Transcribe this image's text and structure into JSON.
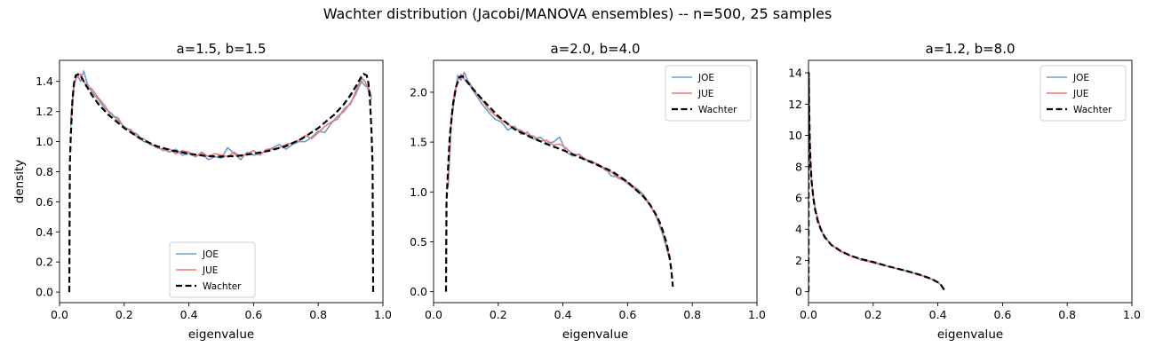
{
  "figure": {
    "suptitle": "Wachter distribution (Jacobi/MANOVA ensembles) -- n=500, 25 samples"
  },
  "colors": {
    "joe": "#6a9fcf",
    "jue": "#e8797a",
    "wachter": "#000000"
  },
  "chart_data": [
    {
      "type": "line",
      "title": "a=1.5, b=1.5",
      "xlabel": "eigenvalue",
      "ylabel": "density",
      "xlim": [
        0.0,
        1.0
      ],
      "ylim": [
        -0.07,
        1.54
      ],
      "xticks": [
        0.0,
        0.2,
        0.4,
        0.6,
        0.8,
        1.0
      ],
      "xtick_labels": [
        "0.0",
        "0.2",
        "0.4",
        "0.6",
        "0.8",
        "1.0"
      ],
      "yticks": [
        0.0,
        0.2,
        0.4,
        0.6,
        0.8,
        1.0,
        1.2,
        1.4
      ],
      "ytick_labels": [
        "0.0",
        "0.2",
        "0.4",
        "0.6",
        "0.8",
        "1.0",
        "1.2",
        "1.4"
      ],
      "legend": {
        "position": "lower-center",
        "entries": [
          "JOE",
          "JUE",
          "Wachter"
        ]
      },
      "series": [
        {
          "name": "JOE",
          "style": "solid",
          "x": [
            0.035,
            0.045,
            0.055,
            0.065,
            0.075,
            0.085,
            0.1,
            0.12,
            0.14,
            0.16,
            0.18,
            0.2,
            0.22,
            0.24,
            0.26,
            0.28,
            0.3,
            0.32,
            0.34,
            0.36,
            0.38,
            0.4,
            0.42,
            0.44,
            0.46,
            0.48,
            0.5,
            0.52,
            0.54,
            0.56,
            0.58,
            0.6,
            0.62,
            0.64,
            0.66,
            0.68,
            0.7,
            0.72,
            0.74,
            0.76,
            0.78,
            0.8,
            0.82,
            0.84,
            0.86,
            0.88,
            0.9,
            0.915,
            0.925,
            0.935,
            0.945,
            0.955,
            0.965
          ],
          "y": [
            1.1,
            1.38,
            1.44,
            1.4,
            1.47,
            1.39,
            1.33,
            1.28,
            1.22,
            1.19,
            1.14,
            1.1,
            1.07,
            1.05,
            1.0,
            0.99,
            0.96,
            0.95,
            0.93,
            0.95,
            0.91,
            0.92,
            0.9,
            0.92,
            0.88,
            0.9,
            0.89,
            0.96,
            0.92,
            0.88,
            0.93,
            0.91,
            0.92,
            0.94,
            0.96,
            0.98,
            0.95,
            0.98,
            1.0,
            1.0,
            1.03,
            1.07,
            1.06,
            1.12,
            1.17,
            1.2,
            1.26,
            1.31,
            1.36,
            1.4,
            1.37,
            1.36,
            1.3
          ]
        },
        {
          "name": "JUE",
          "style": "solid",
          "x": [
            0.035,
            0.045,
            0.055,
            0.065,
            0.075,
            0.085,
            0.1,
            0.12,
            0.14,
            0.16,
            0.18,
            0.2,
            0.22,
            0.24,
            0.26,
            0.28,
            0.3,
            0.32,
            0.34,
            0.36,
            0.38,
            0.4,
            0.42,
            0.44,
            0.46,
            0.48,
            0.5,
            0.52,
            0.54,
            0.56,
            0.58,
            0.6,
            0.62,
            0.64,
            0.66,
            0.68,
            0.7,
            0.72,
            0.74,
            0.76,
            0.78,
            0.8,
            0.82,
            0.84,
            0.86,
            0.88,
            0.9,
            0.915,
            0.925,
            0.935,
            0.945,
            0.955,
            0.965
          ],
          "y": [
            1.15,
            1.4,
            1.43,
            1.45,
            1.4,
            1.37,
            1.35,
            1.29,
            1.24,
            1.17,
            1.16,
            1.09,
            1.08,
            1.03,
            1.02,
            0.98,
            0.97,
            0.94,
            0.95,
            0.92,
            0.94,
            0.93,
            0.9,
            0.93,
            0.9,
            0.92,
            0.91,
            0.9,
            0.93,
            0.9,
            0.92,
            0.94,
            0.91,
            0.95,
            0.95,
            0.96,
            0.98,
            0.99,
            1.01,
            1.04,
            1.02,
            1.06,
            1.1,
            1.13,
            1.15,
            1.22,
            1.25,
            1.33,
            1.38,
            1.42,
            1.4,
            1.34,
            1.28
          ]
        },
        {
          "name": "Wachter",
          "style": "dashed",
          "x": [
            0.0302,
            0.032,
            0.035,
            0.04,
            0.045,
            0.05,
            0.06,
            0.07,
            0.08,
            0.1,
            0.12,
            0.15,
            0.2,
            0.25,
            0.3,
            0.35,
            0.4,
            0.45,
            0.5,
            0.55,
            0.6,
            0.65,
            0.7,
            0.75,
            0.8,
            0.85,
            0.88,
            0.9,
            0.92,
            0.93,
            0.94,
            0.95,
            0.955,
            0.96,
            0.965,
            0.968,
            0.9698
          ],
          "y": [
            0.0,
            0.85,
            1.05,
            1.28,
            1.39,
            1.44,
            1.45,
            1.42,
            1.38,
            1.31,
            1.25,
            1.18,
            1.09,
            1.02,
            0.97,
            0.94,
            0.92,
            0.905,
            0.9,
            0.905,
            0.92,
            0.94,
            0.97,
            1.02,
            1.09,
            1.18,
            1.25,
            1.31,
            1.38,
            1.42,
            1.45,
            1.44,
            1.39,
            1.28,
            1.05,
            0.85,
            0.0
          ]
        }
      ]
    },
    {
      "type": "line",
      "title": "a=2.0, b=4.0",
      "xlabel": "eigenvalue",
      "ylabel": "",
      "xlim": [
        0.0,
        1.0
      ],
      "ylim": [
        -0.11,
        2.32
      ],
      "xticks": [
        0.0,
        0.2,
        0.4,
        0.6,
        0.8,
        1.0
      ],
      "xtick_labels": [
        "0.0",
        "0.2",
        "0.4",
        "0.6",
        "0.8",
        "1.0"
      ],
      "yticks": [
        0.0,
        0.5,
        1.0,
        1.5,
        2.0
      ],
      "ytick_labels": [
        "0.0",
        "0.5",
        "1.0",
        "1.5",
        "2.0"
      ],
      "legend": {
        "position": "top-right",
        "entries": [
          "JOE",
          "JUE",
          "Wachter"
        ]
      },
      "series": [
        {
          "name": "JOE",
          "style": "solid",
          "x": [
            0.045,
            0.055,
            0.065,
            0.075,
            0.085,
            0.095,
            0.11,
            0.13,
            0.15,
            0.17,
            0.19,
            0.21,
            0.23,
            0.25,
            0.27,
            0.29,
            0.31,
            0.33,
            0.35,
            0.37,
            0.39,
            0.41,
            0.43,
            0.45,
            0.47,
            0.49,
            0.51,
            0.53,
            0.55,
            0.57,
            0.59,
            0.61,
            0.63,
            0.65,
            0.67,
            0.69,
            0.71,
            0.73
          ],
          "y": [
            1.05,
            1.7,
            1.95,
            2.17,
            2.12,
            2.2,
            2.08,
            1.98,
            1.88,
            1.8,
            1.73,
            1.7,
            1.62,
            1.66,
            1.58,
            1.6,
            1.53,
            1.55,
            1.49,
            1.5,
            1.55,
            1.4,
            1.36,
            1.38,
            1.32,
            1.31,
            1.26,
            1.24,
            1.16,
            1.15,
            1.13,
            1.07,
            1.03,
            0.97,
            0.87,
            0.74,
            0.56,
            0.32
          ]
        },
        {
          "name": "JUE",
          "style": "solid",
          "x": [
            0.045,
            0.055,
            0.065,
            0.075,
            0.085,
            0.095,
            0.11,
            0.13,
            0.15,
            0.17,
            0.19,
            0.21,
            0.23,
            0.25,
            0.27,
            0.29,
            0.31,
            0.33,
            0.35,
            0.37,
            0.39,
            0.41,
            0.43,
            0.45,
            0.47,
            0.49,
            0.51,
            0.53,
            0.55,
            0.57,
            0.59,
            0.61,
            0.63,
            0.65,
            0.67,
            0.69,
            0.71,
            0.73
          ],
          "y": [
            1.1,
            1.75,
            2.0,
            2.12,
            2.18,
            2.13,
            2.1,
            2.0,
            1.92,
            1.83,
            1.77,
            1.72,
            1.68,
            1.63,
            1.62,
            1.57,
            1.56,
            1.51,
            1.52,
            1.47,
            1.48,
            1.44,
            1.38,
            1.37,
            1.33,
            1.3,
            1.28,
            1.22,
            1.2,
            1.14,
            1.11,
            1.06,
            1.01,
            0.95,
            0.86,
            0.75,
            0.58,
            0.35
          ]
        },
        {
          "name": "Wachter",
          "style": "dashed",
          "x": [
            0.0385,
            0.04,
            0.045,
            0.05,
            0.06,
            0.07,
            0.08,
            0.09,
            0.1,
            0.12,
            0.15,
            0.2,
            0.25,
            0.3,
            0.35,
            0.4,
            0.45,
            0.5,
            0.55,
            0.6,
            0.63,
            0.65,
            0.67,
            0.69,
            0.7,
            0.71,
            0.72,
            0.73,
            0.735,
            0.74
          ],
          "y": [
            0.0,
            0.9,
            1.25,
            1.55,
            1.88,
            2.06,
            2.15,
            2.16,
            2.12,
            2.04,
            1.93,
            1.76,
            1.63,
            1.55,
            1.48,
            1.42,
            1.35,
            1.28,
            1.21,
            1.1,
            1.01,
            0.95,
            0.87,
            0.76,
            0.69,
            0.6,
            0.49,
            0.34,
            0.22,
            0.05
          ]
        }
      ]
    },
    {
      "type": "line",
      "title": "a=1.2, b=8.0",
      "xlabel": "eigenvalue",
      "ylabel": "",
      "xlim": [
        0.0,
        1.0
      ],
      "ylim": [
        -0.7,
        14.8
      ],
      "xticks": [
        0.0,
        0.2,
        0.4,
        0.6,
        0.8,
        1.0
      ],
      "xtick_labels": [
        "0.0",
        "0.2",
        "0.4",
        "0.6",
        "0.8",
        "1.0"
      ],
      "yticks": [
        0,
        2,
        4,
        6,
        8,
        10,
        12,
        14
      ],
      "ytick_labels": [
        "0",
        "2",
        "4",
        "6",
        "8",
        "10",
        "12",
        "14"
      ],
      "legend": {
        "position": "top-right",
        "entries": [
          "JOE",
          "JUE",
          "Wachter"
        ]
      },
      "series": [
        {
          "name": "JOE",
          "style": "solid",
          "x": [
            0.001,
            0.003,
            0.006,
            0.01,
            0.015,
            0.02,
            0.03,
            0.04,
            0.05,
            0.07,
            0.1,
            0.13,
            0.16,
            0.2,
            0.25,
            0.3,
            0.35,
            0.38,
            0.4,
            0.41,
            0.42
          ],
          "y": [
            13.6,
            10.6,
            8.4,
            7.0,
            6.0,
            5.4,
            4.5,
            3.9,
            3.5,
            3.0,
            2.6,
            2.3,
            2.1,
            1.9,
            1.6,
            1.35,
            1.05,
            0.82,
            0.6,
            0.42,
            0.15
          ]
        },
        {
          "name": "JUE",
          "style": "solid",
          "x": [
            0.001,
            0.003,
            0.006,
            0.01,
            0.015,
            0.02,
            0.03,
            0.04,
            0.05,
            0.07,
            0.1,
            0.13,
            0.16,
            0.2,
            0.25,
            0.3,
            0.35,
            0.38,
            0.4,
            0.41,
            0.42
          ],
          "y": [
            13.4,
            10.4,
            8.3,
            7.0,
            6.1,
            5.4,
            4.6,
            3.95,
            3.55,
            3.0,
            2.55,
            2.3,
            2.05,
            1.85,
            1.6,
            1.32,
            1.02,
            0.8,
            0.6,
            0.4,
            0.15
          ]
        },
        {
          "name": "Wachter",
          "style": "dashed",
          "x": [
            0.0001,
            0.0008,
            0.002,
            0.004,
            0.007,
            0.01,
            0.015,
            0.02,
            0.03,
            0.04,
            0.05,
            0.07,
            0.1,
            0.13,
            0.16,
            0.2,
            0.25,
            0.3,
            0.35,
            0.38,
            0.4,
            0.41,
            0.42
          ],
          "y": [
            0.0,
            14.0,
            11.8,
            9.6,
            7.9,
            7.0,
            6.0,
            5.3,
            4.4,
            3.9,
            3.5,
            3.0,
            2.6,
            2.3,
            2.1,
            1.9,
            1.6,
            1.35,
            1.05,
            0.82,
            0.6,
            0.42,
            0.1
          ]
        }
      ]
    }
  ]
}
